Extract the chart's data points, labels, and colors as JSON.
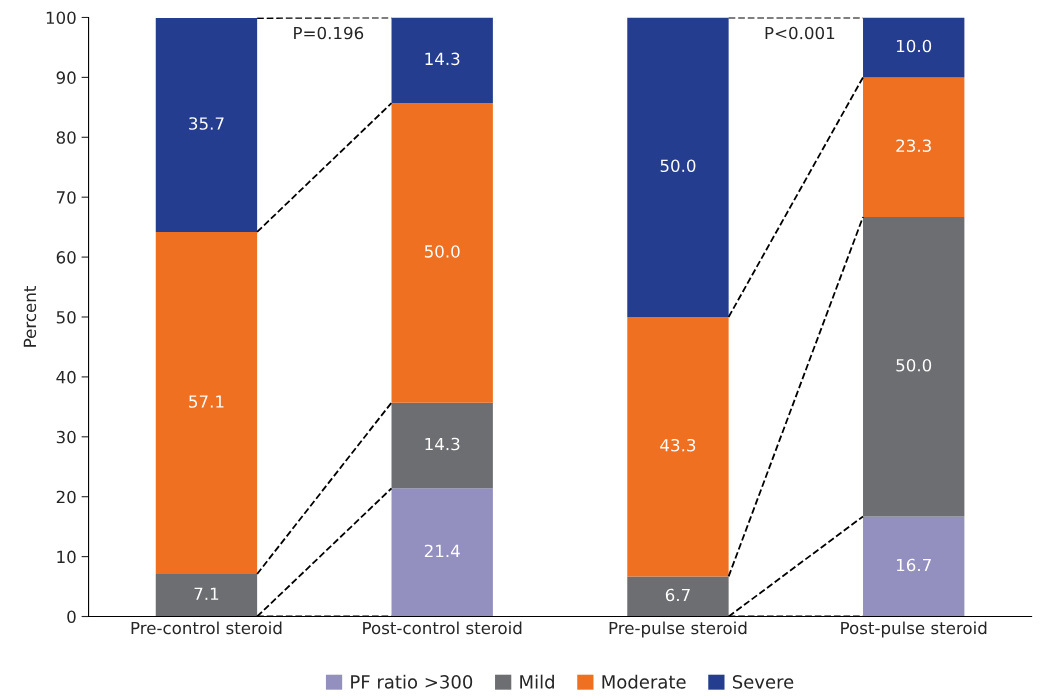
{
  "chart_data": {
    "type": "bar",
    "stacked": true,
    "ylabel": "Percent",
    "categories": [
      "Pre-control steroid",
      "Post-control steroid",
      "Pre-pulse steroid",
      "Post-pulse steroid"
    ],
    "series": [
      {
        "name": "PF ratio >300",
        "color": "#9390c0",
        "values": [
          0,
          21.4,
          0,
          16.7
        ],
        "value_labels": [
          null,
          "21.4",
          null,
          "16.7"
        ]
      },
      {
        "name": "Mild",
        "color": "#6d6e71",
        "values": [
          7.1,
          14.3,
          6.7,
          50.0
        ],
        "value_labels": [
          "7.1",
          "14.3",
          "6.7",
          "50.0"
        ]
      },
      {
        "name": "Moderate",
        "color": "#f07022",
        "values": [
          57.1,
          50.0,
          43.3,
          23.3
        ],
        "value_labels": [
          "57.1",
          "50.0",
          "43.3",
          "23.3"
        ]
      },
      {
        "name": "Severe",
        "color": "#253d8f",
        "values": [
          35.7,
          14.3,
          50.0,
          10.0
        ],
        "value_labels": [
          "35.7",
          "14.3",
          "50.0",
          "10.0"
        ]
      }
    ],
    "annotations": [
      "P=0.196",
      "P<0.001"
    ],
    "ylim": [
      0,
      100
    ],
    "yticks": [
      0,
      10,
      20,
      30,
      40,
      50,
      60,
      70,
      80,
      90,
      100
    ],
    "grid": false,
    "legend": "bottom"
  }
}
